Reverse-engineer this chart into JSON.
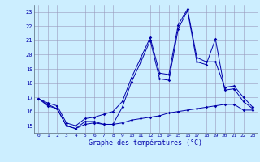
{
  "xlabel": "Graphe des températures (°C)",
  "background_color": "#cceeff",
  "grid_color": "#9999bb",
  "line_color": "#0000aa",
  "hours": [
    0,
    1,
    2,
    3,
    4,
    5,
    6,
    7,
    8,
    9,
    10,
    11,
    12,
    13,
    14,
    15,
    16,
    17,
    18,
    19,
    20,
    21,
    22,
    23
  ],
  "temp": [
    16.9,
    16.5,
    16.2,
    15.0,
    14.8,
    15.3,
    15.3,
    15.1,
    15.1,
    16.3,
    18.1,
    19.5,
    21.0,
    18.3,
    18.2,
    21.8,
    23.1,
    19.5,
    19.3,
    21.1,
    17.5,
    17.6,
    16.7,
    16.2
  ],
  "tmin": [
    16.9,
    16.4,
    16.2,
    15.0,
    14.8,
    15.1,
    15.2,
    15.1,
    15.1,
    15.2,
    15.4,
    15.5,
    15.6,
    15.7,
    15.9,
    16.0,
    16.1,
    16.2,
    16.3,
    16.4,
    16.5,
    16.5,
    16.1,
    16.1
  ],
  "tmax": [
    16.9,
    16.6,
    16.4,
    15.2,
    15.0,
    15.5,
    15.6,
    15.8,
    16.0,
    16.7,
    18.4,
    19.8,
    21.2,
    18.7,
    18.6,
    22.1,
    23.2,
    19.8,
    19.5,
    19.5,
    17.7,
    17.8,
    17.0,
    16.3
  ],
  "ylim": [
    14.5,
    23.5
  ],
  "yticks": [
    15,
    16,
    17,
    18,
    19,
    20,
    21,
    22,
    23
  ],
  "xticks": [
    0,
    1,
    2,
    3,
    4,
    5,
    6,
    7,
    8,
    9,
    10,
    11,
    12,
    13,
    14,
    15,
    16,
    17,
    18,
    19,
    20,
    21,
    22,
    23
  ]
}
